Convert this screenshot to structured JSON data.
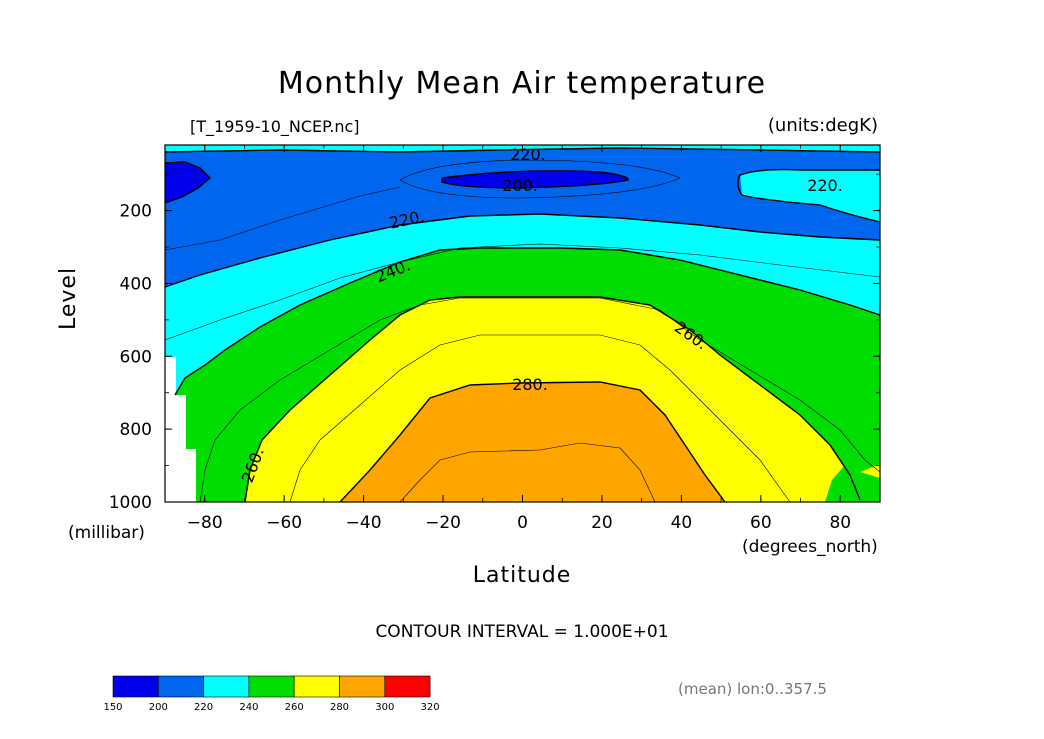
{
  "chart_data": {
    "type": "contour",
    "title": "Monthly Mean Air temperature",
    "source_label": "[T_1959-10_NCEP.nc]",
    "units_label": "(units:degK)",
    "xlabel": "Latitude",
    "x_units": "(degrees_north)",
    "ylabel": "Level",
    "y_units": "(millibar)",
    "x_ticks": [
      "-80",
      "-60",
      "-40",
      "-20",
      "0",
      "20",
      "40",
      "60",
      "80"
    ],
    "y_ticks": [
      "200",
      "400",
      "600",
      "800",
      "1000"
    ],
    "xlim": [
      -90,
      90
    ],
    "ylim": [
      1000,
      20
    ],
    "contour_interval_text": "CONTOUR INTERVAL = 1.000E+01",
    "mean_lon_text": "(mean) lon:0..357.5",
    "contour_labels": [
      "220.",
      "200.",
      "220.",
      "220.",
      "240.",
      "260.",
      "280.",
      "260."
    ],
    "levels": [
      150,
      200,
      220,
      240,
      260,
      280,
      300,
      320
    ],
    "colorbar_labels": [
      "150",
      "200",
      "220",
      "240",
      "260",
      "280",
      "300",
      "320"
    ],
    "colors": [
      "#0000ee",
      "#0066ee",
      "#00ffff",
      "#00dd00",
      "#ffff00",
      "#ffa500",
      "#ff0000"
    ]
  }
}
